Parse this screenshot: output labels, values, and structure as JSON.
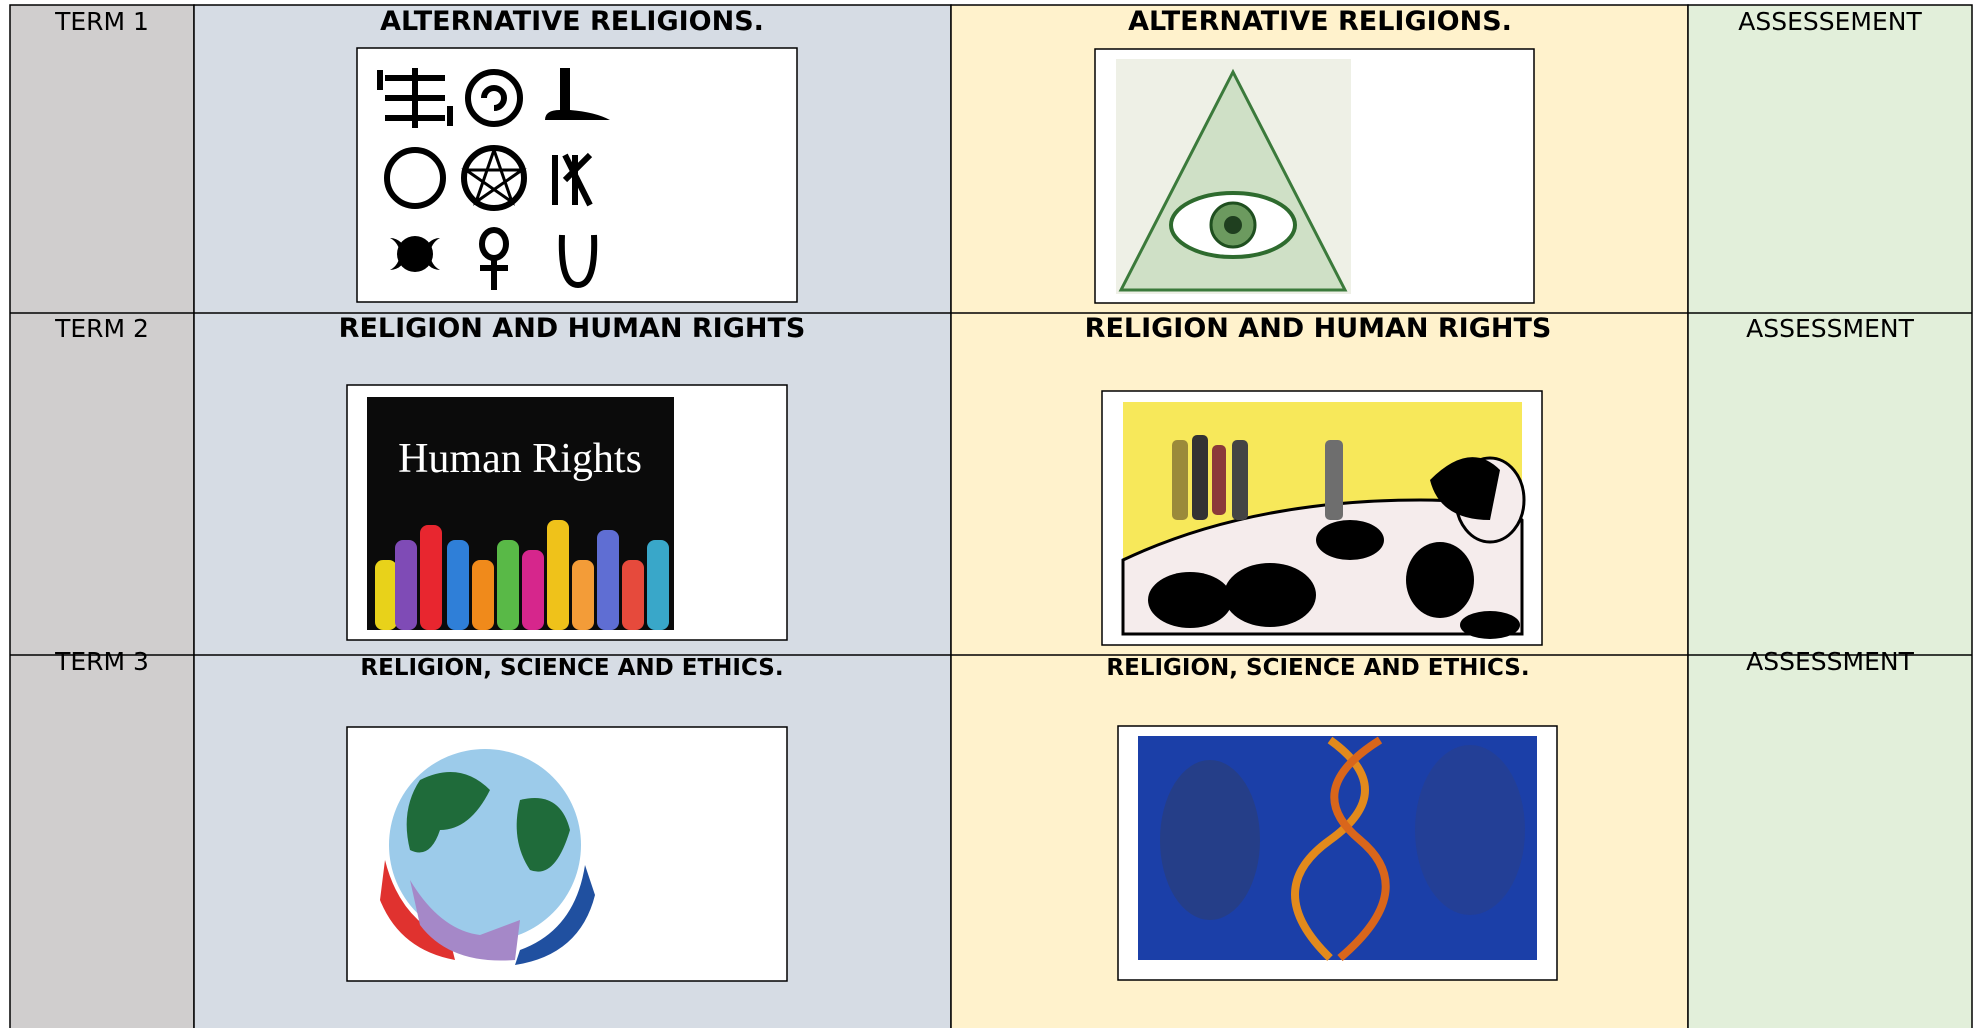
{
  "rows": [
    {
      "term": "TERM 1",
      "topic_a": "ALTERNATIVE RELIGIONS.",
      "topic_b": "ALTERNATIVE RELIGIONS.",
      "assessment": "ASSESSEMENT"
    },
    {
      "term": "TERM 2",
      "topic_a": "RELIGION AND HUMAN RIGHTS",
      "topic_b": "RELIGION AND HUMAN RIGHTS",
      "assessment": "ASSESSMENT",
      "image_text": "Human Rights"
    },
    {
      "term": "TERM 3",
      "topic_a": "RELIGION, SCIENCE AND ETHICS.",
      "topic_b": "RELIGION, SCIENCE AND ETHICS.",
      "assessment": "ASSESSMENT"
    }
  ]
}
